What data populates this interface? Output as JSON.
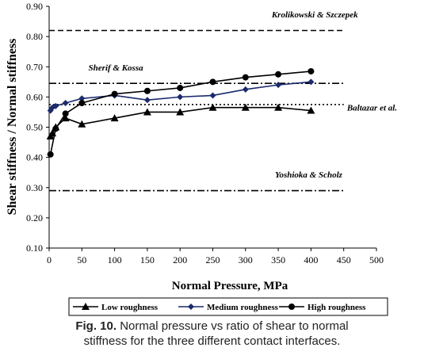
{
  "chart_data": {
    "type": "line",
    "xlabel": "Normal Pressure, MPa",
    "ylabel": "Shear stiffness / Normal stiffness",
    "xlim": [
      0,
      500
    ],
    "ylim": [
      0.1,
      0.9
    ],
    "x_ticks": [
      0,
      50,
      100,
      150,
      200,
      250,
      300,
      350,
      400,
      450,
      500
    ],
    "y_ticks": [
      0.1,
      0.2,
      0.3,
      0.4,
      0.5,
      0.6,
      0.7,
      0.8,
      0.9
    ],
    "x_tick_labels": [
      "0",
      "50",
      "100",
      "150",
      "200",
      "250",
      "300",
      "350",
      "400",
      "450",
      "500"
    ],
    "y_tick_labels": [
      "0.10",
      "0.20",
      "0.30",
      "0.40",
      "0.50",
      "0.60",
      "0.70",
      "0.80",
      "0.90"
    ],
    "grid": false,
    "legend_position": "bottom",
    "series": [
      {
        "name": "Low roughness",
        "marker": "triangle",
        "color": "#000000",
        "x": [
          2,
          5,
          10,
          25,
          50,
          100,
          150,
          200,
          250,
          300,
          350,
          400
        ],
        "y": [
          0.47,
          0.48,
          0.5,
          0.53,
          0.51,
          0.53,
          0.55,
          0.55,
          0.565,
          0.565,
          0.565,
          0.555
        ]
      },
      {
        "name": "Medium roughness",
        "marker": "diamond",
        "color": "#1a2a6c",
        "x": [
          2,
          5,
          10,
          25,
          50,
          100,
          150,
          200,
          250,
          300,
          350,
          400
        ],
        "y": [
          0.555,
          0.565,
          0.57,
          0.58,
          0.595,
          0.605,
          0.59,
          0.6,
          0.605,
          0.625,
          0.64,
          0.65
        ]
      },
      {
        "name": "High roughness",
        "marker": "circle",
        "color": "#000000",
        "x": [
          2,
          10,
          25,
          50,
          100,
          150,
          200,
          250,
          300,
          350,
          400
        ],
        "y": [
          0.41,
          0.495,
          0.545,
          0.58,
          0.61,
          0.62,
          0.63,
          0.65,
          0.665,
          0.675,
          0.685
        ]
      }
    ],
    "reference_lines": [
      {
        "label": "Krolikowski & Szczepek",
        "y": 0.82,
        "style": "dashed",
        "label_x": 340,
        "label_y": 0.863
      },
      {
        "label": "Sherif & Kossa",
        "y": 0.645,
        "style": "dashdot",
        "label_x": 60,
        "label_y": 0.688
      },
      {
        "label": "Baltazar et al.",
        "y": 0.575,
        "style": "dotted",
        "label_x": 455,
        "label_y": 0.555
      },
      {
        "label": "Yoshioka & Scholz",
        "y": 0.29,
        "style": "dashdot",
        "label_x": 345,
        "label_y": 0.333
      }
    ]
  },
  "caption": {
    "fig_label": "Fig. 10.",
    "text_line1": " Normal pressure vs ratio of shear to normal",
    "text_line2": "stiffness for the three different contact interfaces."
  }
}
